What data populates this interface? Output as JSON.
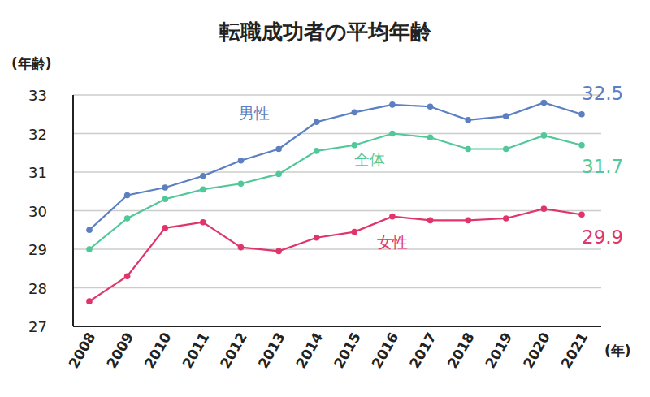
{
  "chart_data": {
    "type": "line",
    "title": "転職成功者の平均年齢",
    "y_label": "(年齢)",
    "x_label": "(年)",
    "categories": [
      "2008",
      "2009",
      "2010",
      "2011",
      "2012",
      "2013",
      "2014",
      "2015",
      "2016",
      "2017",
      "2018",
      "2019",
      "2020",
      "2021"
    ],
    "series": [
      {
        "name": "男性",
        "color": "#5b7fc0",
        "marker": "circle",
        "values": [
          29.5,
          30.4,
          30.6,
          30.9,
          31.3,
          31.6,
          32.3,
          32.55,
          32.75,
          32.7,
          32.35,
          32.45,
          32.8,
          32.5
        ],
        "value_labels": [
          null,
          null,
          null,
          null,
          null,
          null,
          null,
          null,
          null,
          null,
          null,
          null,
          null,
          "32.5"
        ]
      },
      {
        "name": "全体",
        "color": "#52c79a",
        "marker": "circle",
        "values": [
          29.0,
          29.8,
          30.3,
          30.55,
          30.7,
          30.95,
          31.55,
          31.7,
          32.0,
          31.9,
          31.6,
          31.6,
          31.95,
          31.7
        ],
        "value_labels": [
          null,
          null,
          null,
          null,
          null,
          null,
          null,
          null,
          null,
          null,
          null,
          null,
          null,
          "31.7"
        ]
      },
      {
        "name": "女性",
        "color": "#e0356b",
        "marker": "circle",
        "values": [
          27.65,
          28.3,
          29.55,
          29.7,
          29.05,
          28.95,
          29.3,
          29.45,
          29.85,
          29.75,
          29.75,
          29.8,
          30.05,
          29.9
        ],
        "value_labels": [
          null,
          null,
          null,
          null,
          null,
          null,
          null,
          null,
          null,
          null,
          null,
          null,
          null,
          "29.9"
        ]
      }
    ],
    "ylim": [
      27,
      33
    ],
    "yticks": [
      27,
      28,
      29,
      30,
      31,
      32,
      33
    ],
    "grid": true,
    "data_labels": true
  }
}
